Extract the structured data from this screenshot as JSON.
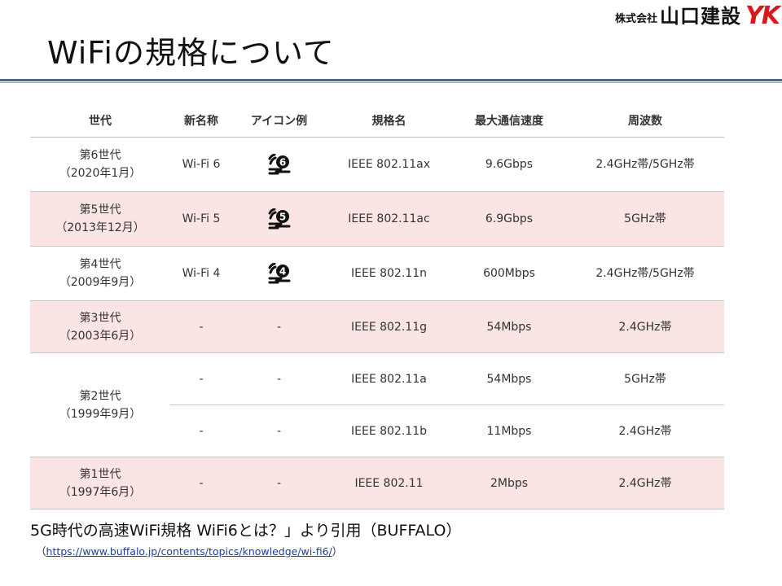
{
  "company": {
    "prefix": "株式会社",
    "name": "山口建設",
    "logo": "YK"
  },
  "title": "WiFiの規格について",
  "table": {
    "headers": [
      "世代",
      "新名称",
      "アイコン例",
      "規格名",
      "最大通信速度",
      "周波数"
    ],
    "rows": [
      {
        "gen1": "第6世代",
        "gen2": "（2020年1月）",
        "name": "Wi-Fi 6",
        "icon": "6",
        "std": "IEEE 802.11ax",
        "speed": "9.6Gbps",
        "freq": "2.4GHz帯/5GHz帯"
      },
      {
        "gen1": "第5世代",
        "gen2": "（2013年12月）",
        "name": "Wi-Fi 5",
        "icon": "5",
        "std": "IEEE 802.11ac",
        "speed": "6.9Gbps",
        "freq": "5GHz帯"
      },
      {
        "gen1": "第4世代",
        "gen2": "（2009年9月）",
        "name": "Wi-Fi 4",
        "icon": "4",
        "std": "IEEE 802.11n",
        "speed": "600Mbps",
        "freq": "2.4GHz帯/5GHz帯"
      },
      {
        "gen1": "第3世代",
        "gen2": "（2003年6月）",
        "name": "-",
        "icon": "-",
        "std": "IEEE 802.11g",
        "speed": "54Mbps",
        "freq": "2.4GHz帯"
      },
      {
        "gen1": "第2世代",
        "gen2": "（1999年9月）",
        "name": "-",
        "icon": "-",
        "std": "IEEE 802.11a",
        "speed": "54Mbps",
        "freq": "5GHz帯"
      },
      {
        "name": "-",
        "icon": "-",
        "std": "IEEE 802.11b",
        "speed": "11Mbps",
        "freq": "2.4GHz帯"
      },
      {
        "gen1": "第1世代",
        "gen2": "（1997年6月）",
        "name": "-",
        "icon": "-",
        "std": "IEEE 802.11",
        "speed": "2Mbps",
        "freq": "2.4GHz帯"
      }
    ]
  },
  "caption": "5G時代の高速WiFi規格 WiFi6とは？」より引用（BUFFALO）",
  "source": {
    "open": "（",
    "url": "https://www.buffalo.jp/contents/topics/knowledge/wi-fi6/",
    "close": "）"
  },
  "colors": {
    "accent_line": "#3c6aa5",
    "pink_row": "#fbe4e4",
    "logo_red": "#d71920",
    "link": "#1a3fa0"
  }
}
